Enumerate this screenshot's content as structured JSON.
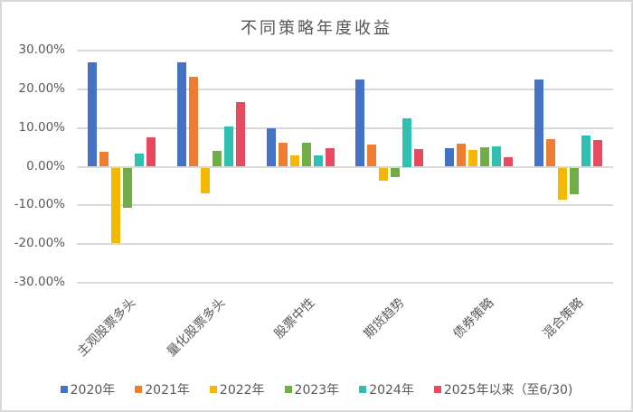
{
  "title": "不同策略年度收益",
  "colors": {
    "2020": "#4472C4",
    "2021": "#ED7D31",
    "2022": "#F5B800",
    "2023": "#70AD47",
    "2024": "#2EC0B0",
    "2025": "#E84A5F"
  },
  "legend": [
    {
      "label": "2020年",
      "color": "#4472C4"
    },
    {
      "label": "2021年",
      "color": "#ED7D31"
    },
    {
      "label": "2022年",
      "color": "#F5B800"
    },
    {
      "label": "2023年",
      "color": "#70AD47"
    },
    {
      "label": "2024年",
      "color": "#2EC0B0"
    },
    {
      "label": "2025年以来（至6/30)",
      "color": "#E84A5F"
    }
  ],
  "y_ticks": [
    "30.00%",
    "20.00%",
    "10.00%",
    "0.00%",
    "-10.00%",
    "-20.00%",
    "-30.00%"
  ],
  "chart_data": {
    "type": "bar",
    "title": "不同策略年度收益",
    "xlabel": "",
    "ylabel": "",
    "ylim": [
      -30,
      30
    ],
    "y_unit": "%",
    "grid": true,
    "legend_position": "bottom",
    "categories": [
      "主观股票多头",
      "量化股票多头",
      "股票中性",
      "期货趋势",
      "债券策略",
      "混合策略"
    ],
    "series": [
      {
        "name": "2020年",
        "color": "#4472C4",
        "values": [
          26.9,
          27.1,
          9.9,
          22.6,
          4.8,
          22.6
        ]
      },
      {
        "name": "2021年",
        "color": "#ED7D31",
        "values": [
          3.8,
          23.2,
          6.3,
          5.8,
          5.9,
          7.1
        ]
      },
      {
        "name": "2022年",
        "color": "#F5B800",
        "values": [
          -19.6,
          -6.6,
          2.9,
          -3.3,
          4.4,
          -8.3
        ]
      },
      {
        "name": "2023年",
        "color": "#70AD47",
        "values": [
          -10.5,
          4.2,
          6.3,
          -2.4,
          5.1,
          -6.9
        ]
      },
      {
        "name": "2024年",
        "color": "#2EC0B0",
        "values": [
          3.5,
          10.3,
          2.9,
          12.5,
          5.3,
          8.0
        ]
      },
      {
        "name": "2025年以来（至6/30)",
        "color": "#E84A5F",
        "values": [
          7.5,
          16.6,
          4.8,
          4.5,
          2.5,
          6.8
        ]
      }
    ]
  }
}
